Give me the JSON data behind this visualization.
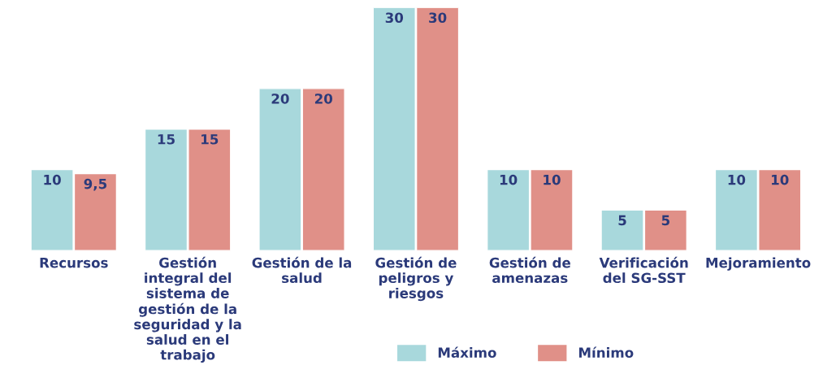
{
  "chart_data": {
    "type": "bar",
    "categories": [
      "Recursos",
      "Gestión integral del sistema de gestión de la seguridad y la salud en el trabajo",
      "Gestión de la salud",
      "Gestión de peligros y riesgos",
      "Gestión de amenazas",
      "Verificación del SG-SST",
      "Mejoramiento"
    ],
    "series": [
      {
        "name": "Máximo",
        "color": "#a8d8dc",
        "values": [
          10,
          15,
          20,
          30,
          10,
          5,
          10
        ],
        "value_labels": [
          "10",
          "15",
          "20",
          "30",
          "10",
          "5",
          "10"
        ]
      },
      {
        "name": "Mínimo",
        "color": "#e09088",
        "values": [
          9.5,
          15,
          20,
          30,
          10,
          5,
          10
        ],
        "value_labels": [
          "9,5",
          "15",
          "20",
          "30",
          "10",
          "5",
          "10"
        ]
      }
    ],
    "legend": "bottom right",
    "grid": false
  }
}
